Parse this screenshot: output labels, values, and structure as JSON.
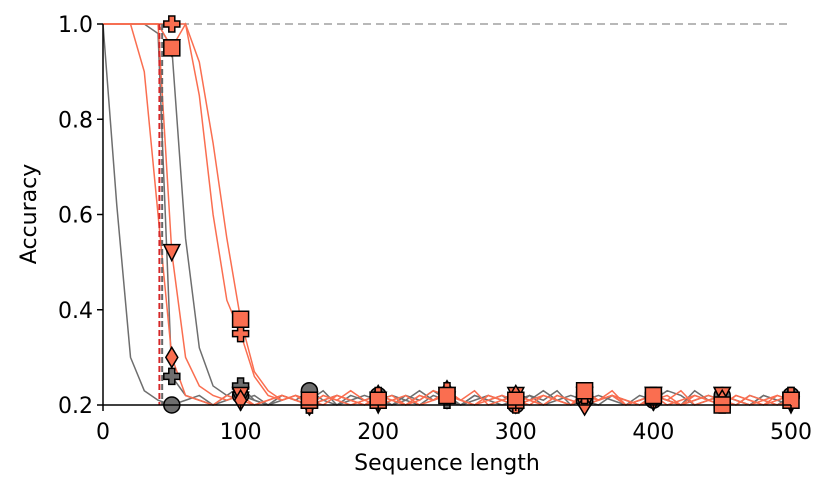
{
  "chart_data": {
    "type": "line",
    "x_label": "Sequence length",
    "y_label": "Accuracy",
    "xlim": [
      0,
      500
    ],
    "ylim": [
      0.2,
      1
    ],
    "xticks": [
      0,
      100,
      200,
      300,
      400,
      500
    ],
    "yticks": [
      0.2,
      0.4,
      0.6,
      0.8,
      {
        "value": 1,
        "label": "1.0"
      }
    ],
    "hlines": [
      {
        "y": 1,
        "color": "#a0a0a0"
      }
    ],
    "vlines": [
      {
        "x": 41,
        "color": "#d62728"
      },
      {
        "x": 43,
        "color": "#666666"
      }
    ],
    "x": [
      0,
      10,
      20,
      30,
      40,
      50,
      60,
      70,
      80,
      90,
      100,
      110,
      120,
      130,
      140,
      150,
      160,
      170,
      180,
      190,
      200,
      210,
      220,
      230,
      240,
      250,
      260,
      270,
      280,
      290,
      300,
      310,
      320,
      330,
      340,
      350,
      360,
      370,
      380,
      390,
      400,
      410,
      420,
      430,
      440,
      450,
      460,
      470,
      480,
      490,
      500
    ],
    "series": [
      {
        "color": "#6e6e6e",
        "marker": "circle",
        "values": [
          1,
          0.62,
          0.3,
          0.23,
          0.21,
          0.2,
          0.21,
          0.22,
          0.2,
          0.21,
          0.22,
          0.21,
          0.2,
          0.22,
          0.21,
          0.23,
          0.21,
          0.2,
          0.22,
          0.21,
          0.22,
          0.2,
          0.21,
          0.23,
          0.21,
          0.22,
          0.2,
          0.21,
          0.22,
          0.21,
          0.2,
          0.22,
          0.21,
          0.23,
          0.2,
          0.21,
          0.22,
          0.21,
          0.2,
          0.22,
          0.21,
          0.23,
          0.22,
          0.2,
          0.21,
          0.22,
          0.21,
          0.2,
          0.22,
          0.21,
          0.22
        ]
      },
      {
        "color": "#6e6e6e",
        "marker": "triangle-down",
        "values": [
          1,
          1,
          1,
          1,
          1,
          0.95,
          0.55,
          0.32,
          0.24,
          0.22,
          0.21,
          0.22,
          0.2,
          0.21,
          0.22,
          0.21,
          0.23,
          0.2,
          0.21,
          0.22,
          0.21,
          0.2,
          0.22,
          0.21,
          0.23,
          0.21,
          0.2,
          0.22,
          0.21,
          0.22,
          0.2,
          0.21,
          0.23,
          0.21,
          0.2,
          0.22,
          0.21,
          0.22,
          0.2,
          0.21,
          0.22,
          0.21,
          0.2,
          0.23,
          0.21,
          0.22,
          0.21,
          0.2,
          0.22,
          0.21,
          0.2
        ]
      },
      {
        "color": "#6e6e6e",
        "marker": "plus",
        "values": [
          1,
          1,
          1,
          1,
          0.98,
          0.26,
          0.22,
          0.21,
          0.2,
          0.22,
          0.24,
          0.21,
          0.2,
          0.22,
          0.21,
          0.2,
          0.21,
          0.22,
          0.21,
          0.2,
          0.21,
          0.22,
          0.21,
          0.2,
          0.22,
          0.21,
          0.2,
          0.22,
          0.21,
          0.2,
          0.21,
          0.22,
          0.2,
          0.21,
          0.22,
          0.21,
          0.2,
          0.22,
          0.21,
          0.2,
          0.22,
          0.21,
          0.2,
          0.21,
          0.22,
          0.21,
          0.2,
          0.22,
          0.21,
          0.2,
          0.22
        ]
      },
      {
        "color": "#fa6e50",
        "marker": "triangle-down",
        "values": [
          1,
          1,
          1,
          1,
          1,
          0.52,
          0.3,
          0.24,
          0.22,
          0.21,
          0.22,
          0.2,
          0.21,
          0.22,
          0.21,
          0.2,
          0.22,
          0.21,
          0.23,
          0.21,
          0.2,
          0.21,
          0.22,
          0.2,
          0.21,
          0.22,
          0.21,
          0.23,
          0.2,
          0.21,
          0.22,
          0.21,
          0.2,
          0.22,
          0.21,
          0.2,
          0.21,
          0.22,
          0.21,
          0.2,
          0.22,
          0.21,
          0.23,
          0.2,
          0.21,
          0.22,
          0.21,
          0.2,
          0.21,
          0.22,
          0.21
        ]
      },
      {
        "color": "#fa6e50",
        "marker": "diamond",
        "values": [
          1,
          1,
          1,
          0.9,
          0.6,
          0.3,
          0.22,
          0.21,
          0.2,
          0.22,
          0.21,
          0.2,
          0.21,
          0.22,
          0.21,
          0.2,
          0.22,
          0.21,
          0.2,
          0.21,
          0.22,
          0.21,
          0.2,
          0.22,
          0.21,
          0.23,
          0.21,
          0.2,
          0.22,
          0.21,
          0.22,
          0.21,
          0.2,
          0.22,
          0.21,
          0.2,
          0.21,
          0.22,
          0.21,
          0.2,
          0.21,
          0.22,
          0.2,
          0.21,
          0.22,
          0.21,
          0.2,
          0.22,
          0.21,
          0.2,
          0.21
        ]
      },
      {
        "color": "#fa6e50",
        "marker": "plus",
        "values": [
          1,
          1,
          1,
          1,
          1,
          1,
          1,
          0.85,
          0.6,
          0.42,
          0.35,
          0.26,
          0.22,
          0.21,
          0.22,
          0.2,
          0.21,
          0.22,
          0.21,
          0.2,
          0.22,
          0.21,
          0.2,
          0.22,
          0.21,
          0.23,
          0.21,
          0.2,
          0.22,
          0.21,
          0.2,
          0.21,
          0.22,
          0.21,
          0.2,
          0.22,
          0.21,
          0.23,
          0.2,
          0.21,
          0.22,
          0.21,
          0.2,
          0.22,
          0.21,
          0.2,
          0.22,
          0.21,
          0.2,
          0.21,
          0.22
        ]
      },
      {
        "color": "#fa6e50",
        "marker": "square",
        "values": [
          1,
          1,
          1,
          1,
          1,
          0.95,
          1,
          0.92,
          0.75,
          0.55,
          0.38,
          0.27,
          0.23,
          0.21,
          0.22,
          0.21,
          0.2,
          0.22,
          0.21,
          0.2,
          0.21,
          0.22,
          0.2,
          0.21,
          0.23,
          0.22,
          0.21,
          0.2,
          0.21,
          0.22,
          0.21,
          0.2,
          0.22,
          0.21,
          0.2,
          0.23,
          0.21,
          0.22,
          0.2,
          0.21,
          0.22,
          0.2,
          0.21,
          0.22,
          0.21,
          0.2,
          0.22,
          0.21,
          0.2,
          0.22,
          0.21
        ]
      }
    ]
  }
}
